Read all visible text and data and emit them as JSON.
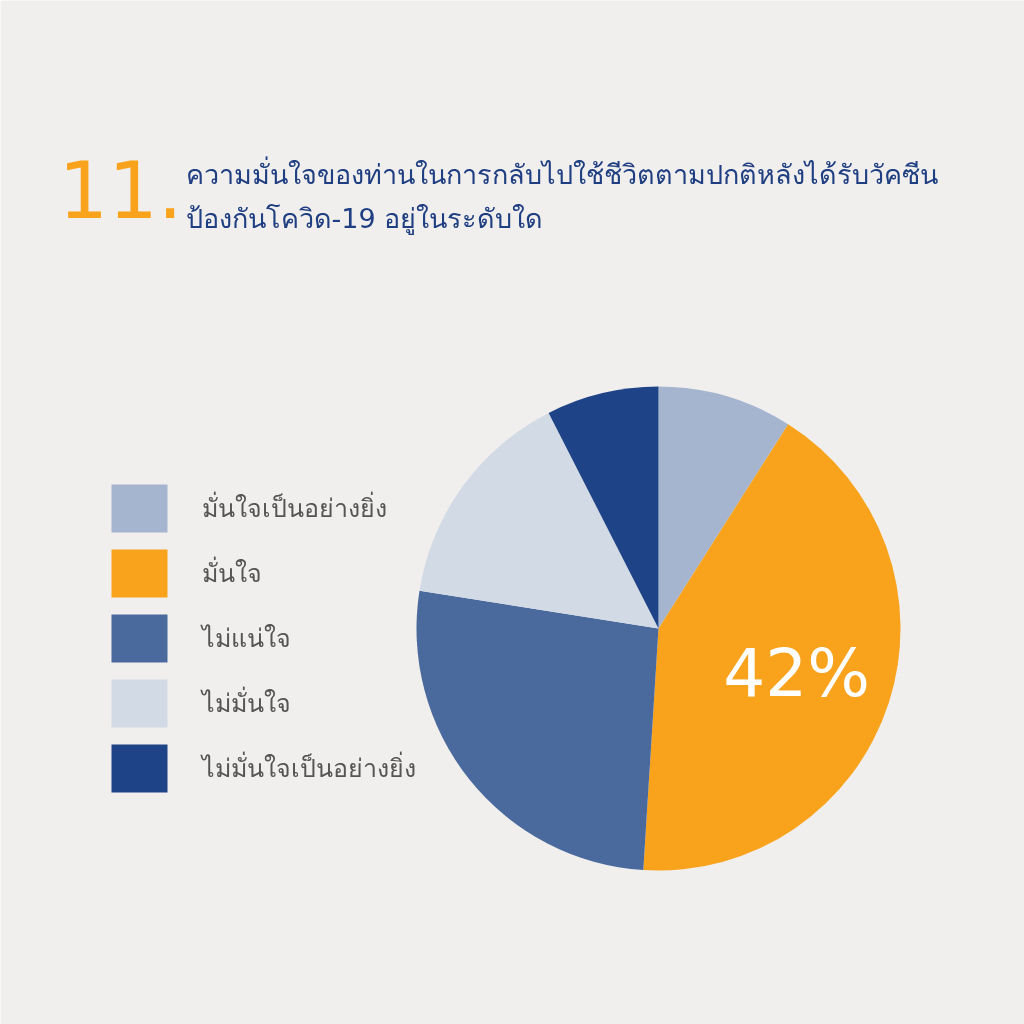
{
  "chart_data": {
    "type": "pie",
    "title": "ความมั่นใจของท่านในการกลับไปใช้ชีวิตตามปกติหลังได้รับวัคซีน\nป้องกันโควิด-19 อยู่ในระดับใด",
    "annotations": [
      "11."
    ],
    "categories": [
      "มั่นใจเป็นอย่างยิ่ง",
      "มั่นใจ",
      "ไม่แน่ใจ",
      "ไม่มั่นใจ",
      "ไม่มั่นใจเป็นอย่างยิ่ง"
    ],
    "values": [
      9,
      42,
      26.5,
      15,
      7.5
    ],
    "colors": [
      "#a5b5cf",
      "#f9a31c",
      "#4a6a9e",
      "#d2dae6",
      "#1f4387"
    ],
    "value_labels": [
      null,
      "42%",
      null,
      null,
      null
    ],
    "legend": "left"
  }
}
